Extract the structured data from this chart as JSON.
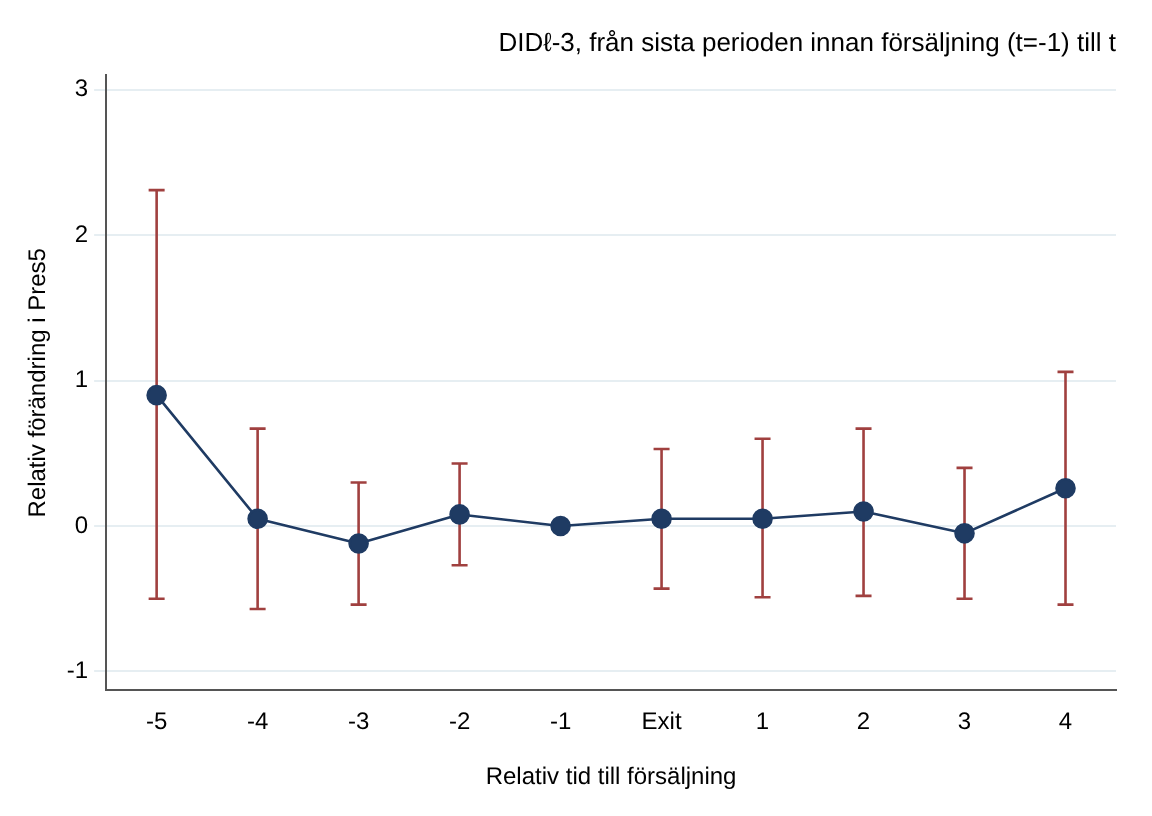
{
  "chart_data": {
    "type": "line",
    "title": "DIDℓ-3, från sista perioden innan försäljning (t=-1) till t",
    "xlabel": "Relativ tid till försäljning",
    "ylabel": "Relativ förändring i Pres5",
    "categories": [
      "-5",
      "-4",
      "-3",
      "-2",
      "-1",
      "Exit",
      "1",
      "2",
      "3",
      "4"
    ],
    "series": [
      {
        "color": "#1f3b63",
        "values": [
          0.9,
          0.05,
          -0.12,
          0.08,
          0,
          0.05,
          0.05,
          0.1,
          -0.05,
          0.26
        ],
        "errors": [
          [
            -0.5,
            2.31
          ],
          [
            -0.57,
            0.67
          ],
          [
            -0.54,
            0.3
          ],
          [
            -0.27,
            0.43
          ],
          null,
          [
            -0.43,
            0.53
          ],
          [
            -0.49,
            0.6
          ],
          [
            -0.48,
            0.67
          ],
          [
            -0.5,
            0.4
          ],
          [
            -0.54,
            1.06
          ]
        ]
      }
    ],
    "ylim": [
      -1.13,
      3.1
    ],
    "yticks": [
      -1,
      0,
      1,
      2,
      3
    ],
    "grid": "y",
    "marker": "circle",
    "line_style": "solid",
    "legend": false
  }
}
